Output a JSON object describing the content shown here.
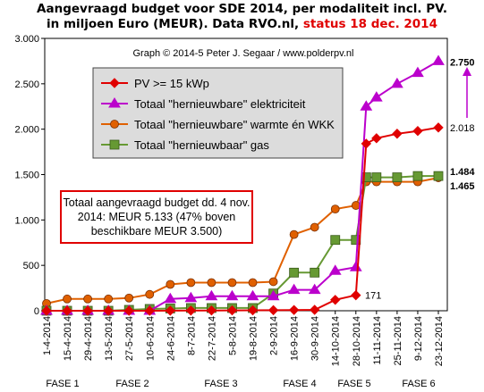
{
  "title_line1": "Aangevraagd budget voor SDE 2014, per modaliteit incl. PV.",
  "title_line2": "in miljoen Euro (MEUR). Data RVO.nl,",
  "title_status": "status 18 dec. 2014",
  "credit": "Graph © 2014-5 Peter J. Segaar / www.polderpv.nl",
  "note": "Totaal aangevraagd budget dd. 4 nov. 2014: MEUR 5.133 (47% boven beschikbare MEUR 3.500)",
  "colors": {
    "pv": "#e00000",
    "elektriciteit": "#bb00cc",
    "warmte": "#e06000",
    "gas": "#669933",
    "legend_bg": "#dcdcdc",
    "plot_bg": "#ffffff",
    "grid": "#bbbbbb"
  },
  "phases": [
    "FASE 1",
    "FASE 2",
    "FASE 3",
    "FASE 4",
    "FASE 5",
    "FASE 6"
  ],
  "chart_data": {
    "type": "line",
    "x_tick_labels": [
      "1-4-2014",
      "15-4-2014",
      "29-4-2014",
      "13-5-2014",
      "27-5-2014",
      "10-6-2014",
      "24-6-2014",
      "8-7-2014",
      "22-7-2014",
      "5-8-2014",
      "19-8-2014",
      "2-9-2014",
      "16-9-2014",
      "30-9-2014",
      "14-10-2014",
      "28-10-2014",
      "11-11-2014",
      "25-11-2014",
      "9-12-2014",
      "23-12-2014"
    ],
    "ylim": [
      0,
      3000
    ],
    "y_ticks": [
      0,
      500,
      1000,
      1500,
      2000,
      2500,
      3000
    ],
    "y_tick_labels": [
      "0",
      "500",
      "1.000",
      "1.500",
      "2.000",
      "2.500",
      "3.000"
    ],
    "legend_position": "top-center",
    "grid": false,
    "series": [
      {
        "name": "PV >= 15 kWp",
        "color_key": "pv",
        "marker": "diamond",
        "points": [
          [
            0,
            0
          ],
          [
            1,
            0
          ],
          [
            2,
            0
          ],
          [
            3,
            0
          ],
          [
            4,
            0
          ],
          [
            5,
            0
          ],
          [
            6,
            1
          ],
          [
            7,
            2
          ],
          [
            8,
            3
          ],
          [
            9,
            4
          ],
          [
            10,
            5
          ],
          [
            11,
            6
          ],
          [
            12,
            8
          ],
          [
            13,
            10
          ],
          [
            14,
            120
          ],
          [
            15,
            171
          ],
          [
            15.5,
            1840
          ],
          [
            16,
            1900
          ],
          [
            17,
            1950
          ],
          [
            18,
            1980
          ],
          [
            19,
            2018
          ]
        ],
        "end_label": "2.018",
        "annotation": "171"
      },
      {
        "name": "Totaal \"hernieuwbare\" elektriciteit",
        "color_key": "elektriciteit",
        "marker": "triangle",
        "points": [
          [
            0,
            0
          ],
          [
            1,
            0
          ],
          [
            2,
            0
          ],
          [
            3,
            0
          ],
          [
            4,
            0
          ],
          [
            5,
            0
          ],
          [
            6,
            130
          ],
          [
            7,
            140
          ],
          [
            8,
            160
          ],
          [
            9,
            160
          ],
          [
            10,
            160
          ],
          [
            11,
            160
          ],
          [
            12,
            230
          ],
          [
            13,
            230
          ],
          [
            14,
            440
          ],
          [
            15,
            480
          ],
          [
            15.5,
            2250
          ],
          [
            16,
            2350
          ],
          [
            17,
            2500
          ],
          [
            18,
            2620
          ],
          [
            19,
            2750
          ]
        ],
        "end_label": "2.750"
      },
      {
        "name": "Totaal \"hernieuwbare\" warmte én WKK",
        "color_key": "warmte",
        "marker": "circle",
        "points": [
          [
            0,
            80
          ],
          [
            1,
            130
          ],
          [
            2,
            130
          ],
          [
            3,
            130
          ],
          [
            4,
            140
          ],
          [
            5,
            180
          ],
          [
            6,
            290
          ],
          [
            7,
            310
          ],
          [
            8,
            310
          ],
          [
            9,
            310
          ],
          [
            10,
            310
          ],
          [
            11,
            320
          ],
          [
            12,
            840
          ],
          [
            13,
            920
          ],
          [
            14,
            1120
          ],
          [
            15,
            1160
          ],
          [
            15.5,
            1420
          ],
          [
            16,
            1420
          ],
          [
            17,
            1420
          ],
          [
            18,
            1420
          ],
          [
            19,
            1465
          ]
        ],
        "end_label": "1.465"
      },
      {
        "name": "Totaal \"hernieuwbaar\" gas",
        "color_key": "gas",
        "marker": "square",
        "points": [
          [
            0,
            0
          ],
          [
            1,
            0
          ],
          [
            2,
            0
          ],
          [
            3,
            0
          ],
          [
            4,
            10
          ],
          [
            5,
            20
          ],
          [
            6,
            25
          ],
          [
            7,
            30
          ],
          [
            8,
            30
          ],
          [
            9,
            30
          ],
          [
            10,
            30
          ],
          [
            11,
            190
          ],
          [
            12,
            420
          ],
          [
            13,
            420
          ],
          [
            14,
            780
          ],
          [
            15,
            780
          ],
          [
            15.5,
            1470
          ],
          [
            16,
            1470
          ],
          [
            17,
            1470
          ],
          [
            18,
            1484
          ],
          [
            19,
            1484
          ]
        ],
        "end_label": "1.484"
      }
    ]
  }
}
